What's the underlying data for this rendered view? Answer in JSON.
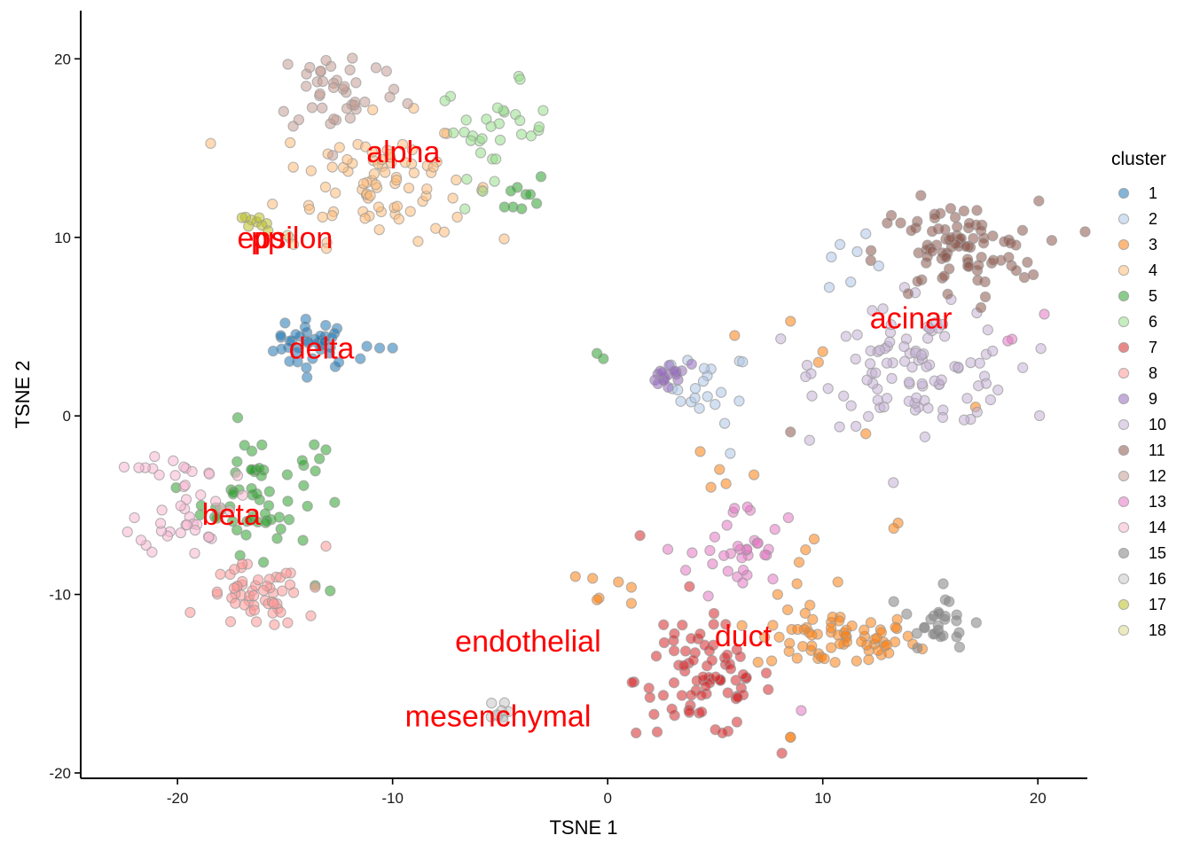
{
  "chart_data": {
    "type": "scatter",
    "title": "",
    "xlabel": "TSNE 1",
    "ylabel": "TSNE 2",
    "xlim": [
      -24.5,
      22.3
    ],
    "ylim": [
      -20.3,
      22.7
    ],
    "xticks": [
      -20,
      -10,
      0,
      10,
      20
    ],
    "yticks": [
      -20,
      -10,
      0,
      10,
      20
    ],
    "legend": {
      "title": "cluster",
      "position": "right",
      "entries": [
        "1",
        "2",
        "3",
        "4",
        "5",
        "6",
        "7",
        "8",
        "9",
        "10",
        "11",
        "12",
        "13",
        "14",
        "15",
        "16",
        "17",
        "18"
      ]
    },
    "colors": {
      "1": "#1f77b4",
      "2": "#aec7e8",
      "3": "#ff7f0e",
      "4": "#ffbb78",
      "5": "#2ca02c",
      "6": "#98df8a",
      "7": "#d62728",
      "8": "#ff9896",
      "9": "#9467bd",
      "10": "#c5b0d5",
      "11": "#8c564b",
      "12": "#c49c94",
      "13": "#e377c2",
      "14": "#f7b6d2",
      "15": "#7f7f7f",
      "16": "#c7c7c7",
      "17": "#bcbd22",
      "18": "#dbdb8d"
    },
    "point_alpha": 0.55,
    "annotations": [
      {
        "text": "alpha",
        "x": -9.5,
        "y": 14.8
      },
      {
        "text": "epsilon",
        "x": -15.0,
        "y": 10.0
      },
      {
        "text": "pp",
        "x": -15.8,
        "y": 10.0
      },
      {
        "text": "delta",
        "x": -13.3,
        "y": 3.8
      },
      {
        "text": "beta",
        "x": -17.5,
        "y": -5.5
      },
      {
        "text": "acinar",
        "x": 14.1,
        "y": 5.5
      },
      {
        "text": "duct",
        "x": 6.3,
        "y": -12.3
      },
      {
        "text": "endothelial",
        "x": -3.7,
        "y": -12.6
      },
      {
        "text": "mesenchymal",
        "x": -5.1,
        "y": -16.8
      }
    ],
    "clusters": [
      {
        "id": "1",
        "n": 35,
        "cx": -13.7,
        "cy": 4.0,
        "sx": 0.9,
        "sy": 0.7,
        "extra": [
          [
            -11.2,
            3.9
          ],
          [
            -10.6,
            3.8
          ],
          [
            -10.0,
            3.8
          ],
          [
            -11.5,
            3.2
          ],
          [
            -12.5,
            3.0
          ],
          [
            -15.2,
            4.5
          ],
          [
            -15.0,
            5.2
          ]
        ]
      },
      {
        "id": "2",
        "n": 20,
        "cx": 4.8,
        "cy": 1.6,
        "sx": 0.9,
        "sy": 1.0,
        "extra": [
          [
            12.0,
            10.2
          ],
          [
            11.6,
            9.2
          ],
          [
            10.8,
            9.6
          ],
          [
            10.4,
            8.9
          ],
          [
            12.6,
            8.4
          ],
          [
            11.3,
            7.5
          ],
          [
            10.3,
            7.2
          ],
          [
            5.7,
            -2.1
          ]
        ]
      },
      {
        "id": "3",
        "n": 70,
        "cx": 10.6,
        "cy": -12.6,
        "sx": 1.9,
        "sy": 0.8,
        "extra": [
          [
            5.9,
            4.5
          ],
          [
            8.5,
            5.3
          ],
          [
            10.0,
            3.6
          ],
          [
            9.8,
            3.0
          ],
          [
            4.3,
            -2.0
          ],
          [
            5.2,
            -3.0
          ],
          [
            6.8,
            -3.3
          ],
          [
            5.5,
            -3.8
          ],
          [
            4.8,
            -4.0
          ],
          [
            13.5,
            -6.0
          ],
          [
            13.3,
            -6.3
          ],
          [
            9.6,
            -6.9
          ],
          [
            9.2,
            -7.5
          ],
          [
            8.9,
            -8.2
          ],
          [
            10.7,
            -9.3
          ],
          [
            8.8,
            -9.4
          ],
          [
            7.9,
            -10.0
          ],
          [
            -1.5,
            -9.0
          ],
          [
            -0.7,
            -9.1
          ],
          [
            -0.4,
            -10.2
          ],
          [
            0.5,
            -9.3
          ],
          [
            1.1,
            -9.6
          ],
          [
            1.1,
            -10.5
          ],
          [
            -0.5,
            -10.3
          ],
          [
            8.5,
            -18.0
          ],
          [
            8.5,
            -18.0
          ],
          [
            17.1,
            0.5
          ],
          [
            12.0,
            -1.0
          ]
        ]
      },
      {
        "id": "4",
        "n": 80,
        "cx": -10.8,
        "cy": 13.3,
        "sx": 2.2,
        "sy": 1.7,
        "extra": [
          [
            -5.8,
            12.8
          ],
          [
            -7.2,
            12.2
          ],
          [
            -8.0,
            10.5
          ],
          [
            -7.6,
            10.3
          ]
        ]
      },
      {
        "id": "5",
        "n": 55,
        "cx": -16.3,
        "cy": -4.4,
        "sx": 1.3,
        "sy": 1.6,
        "extra": [
          [
            -17.2,
            -0.1
          ],
          [
            -13.1,
            -1.9
          ],
          [
            -13.4,
            -2.4
          ],
          [
            -14.2,
            -2.5
          ],
          [
            -16.0,
            -8.2
          ],
          [
            -13.6,
            -9.5
          ],
          [
            -12.9,
            -9.8
          ],
          [
            -3.8,
            12.4
          ],
          [
            -3.3,
            11.9
          ],
          [
            -4.2,
            12.8
          ],
          [
            -3.6,
            12.4
          ],
          [
            -4.0,
            11.6
          ],
          [
            -4.5,
            12.6
          ],
          [
            -4.8,
            11.7
          ],
          [
            -3.1,
            13.4
          ],
          [
            -4.4,
            11.7
          ],
          [
            -0.5,
            3.5
          ],
          [
            -0.2,
            3.2
          ]
        ]
      },
      {
        "id": "6",
        "n": 32,
        "cx": -5.3,
        "cy": 16.0,
        "sx": 1.3,
        "sy": 1.3,
        "extra": []
      },
      {
        "id": "7",
        "n": 80,
        "cx": 4.5,
        "cy": -14.8,
        "sx": 1.6,
        "sy": 1.6,
        "extra": [
          [
            1.5,
            -6.7
          ],
          [
            2.6,
            -11.7
          ],
          [
            3.1,
            -12.2
          ]
        ]
      },
      {
        "id": "8",
        "n": 50,
        "cx": -16.5,
        "cy": -10.2,
        "sx": 1.1,
        "sy": 0.9,
        "extra": [
          [
            -13.6,
            -9.6
          ],
          [
            -13.8,
            -11.2
          ],
          [
            -13.1,
            -7.3
          ],
          [
            -14.6,
            -9.9
          ],
          [
            -15.2,
            -11.0
          ]
        ]
      },
      {
        "id": "9",
        "n": 16,
        "cx": 2.7,
        "cy": 2.1,
        "sx": 0.5,
        "sy": 0.3,
        "extra": [
          [
            3.9,
            2.9
          ]
        ]
      },
      {
        "id": "10",
        "n": 95,
        "cx": 14.6,
        "cy": 2.7,
        "sx": 2.3,
        "sy": 1.6,
        "extra": [
          [
            13.8,
            7.2
          ],
          [
            14.3,
            6.9
          ],
          [
            12.8,
            6.0
          ],
          [
            12.3,
            5.9
          ],
          [
            9.2,
            2.2
          ],
          [
            19.3,
            2.7
          ],
          [
            17.8,
            0.9
          ]
        ]
      },
      {
        "id": "11",
        "n": 90,
        "cx": 16.2,
        "cy": 9.2,
        "sx": 1.9,
        "sy": 1.4,
        "extra": [
          [
            8.5,
            -0.9
          ]
        ]
      },
      {
        "id": "12",
        "n": 42,
        "cx": -12.5,
        "cy": 18.3,
        "sx": 1.5,
        "sy": 1.3,
        "extra": []
      },
      {
        "id": "13",
        "n": 32,
        "cx": 6.0,
        "cy": -7.8,
        "sx": 1.1,
        "sy": 1.4,
        "extra": [
          [
            6.5,
            -5.1
          ],
          [
            8.4,
            -5.7
          ],
          [
            9.0,
            -16.5
          ],
          [
            20.3,
            5.7
          ],
          [
            18.8,
            4.3
          ],
          [
            18.6,
            4.2
          ]
        ]
      },
      {
        "id": "14",
        "n": 42,
        "cx": -19.6,
        "cy": -4.6,
        "sx": 1.1,
        "sy": 1.6,
        "extra": [
          [
            -21.5,
            -2.9
          ],
          [
            -21.8,
            -2.9
          ],
          [
            -22.0,
            -5.7
          ]
        ]
      },
      {
        "id": "15",
        "n": 22,
        "cx": 15.3,
        "cy": -11.8,
        "sx": 0.9,
        "sy": 0.6,
        "extra": [
          [
            15.7,
            -10.3
          ],
          [
            15.6,
            -9.4
          ],
          [
            13.3,
            -10.4
          ],
          [
            14.4,
            -13.0
          ],
          [
            13.9,
            -11.1
          ]
        ]
      },
      {
        "id": "16",
        "n": 9,
        "cx": -5.2,
        "cy": -16.7,
        "sx": 0.25,
        "sy": 0.35,
        "extra": []
      },
      {
        "id": "17",
        "n": 7,
        "cx": -16.4,
        "cy": 10.6,
        "sx": 0.35,
        "sy": 0.35,
        "extra": [
          [
            -16.2,
            11.1
          ],
          [
            -17.0,
            11.1
          ]
        ]
      },
      {
        "id": "18",
        "n": 2,
        "cx": -15.0,
        "cy": 10.1,
        "sx": 0.3,
        "sy": 0.2,
        "extra": [
          [
            -14.6,
            9.6
          ]
        ]
      }
    ]
  }
}
